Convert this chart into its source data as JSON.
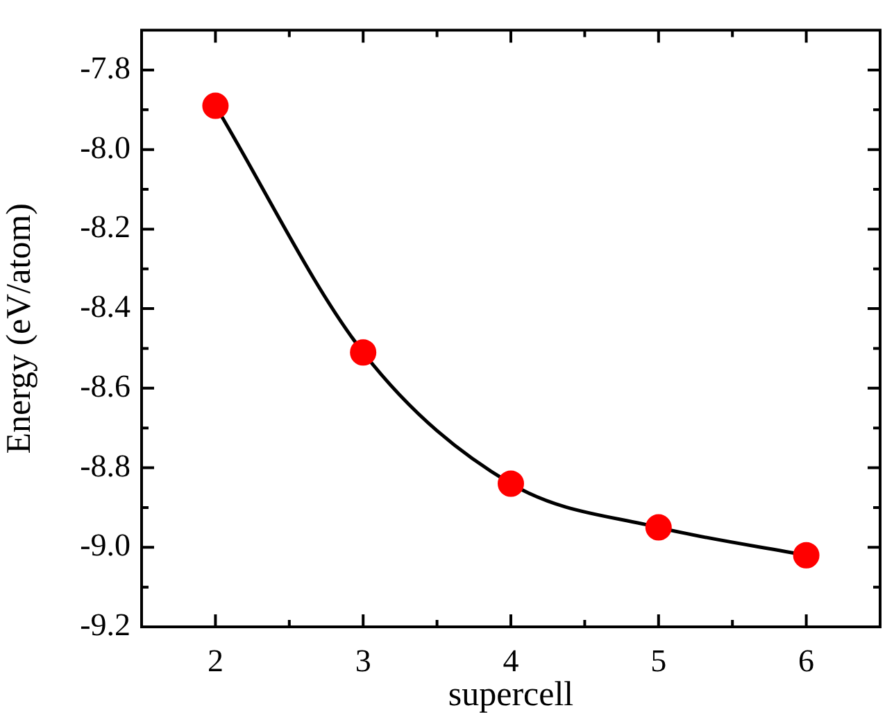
{
  "chart_data": {
    "type": "line",
    "xlabel": "supercell",
    "ylabel": "Energy (eV/atom)",
    "x": [
      2,
      3,
      4,
      5,
      6
    ],
    "series": [
      {
        "color": "#ff0000",
        "values": [
          -7.89,
          -8.51,
          -8.84,
          -8.95,
          -9.02
        ]
      }
    ],
    "xlim": [
      1.5,
      6.5
    ],
    "xticks": [
      2,
      {
        "value": 2.5,
        "label": null
      },
      3,
      {
        "value": 3.5,
        "label": null
      },
      4,
      {
        "value": 4.5,
        "label": null
      },
      5,
      {
        "value": 5.5,
        "label": null
      },
      6
    ],
    "ylim": [
      -9.2,
      -7.7
    ],
    "yticks": [
      {
        "value": -9.2,
        "label": "-9.2"
      },
      {
        "value": -9.1,
        "label": null
      },
      {
        "value": -9.0,
        "label": "-9.0"
      },
      {
        "value": -8.9,
        "label": null
      },
      {
        "value": -8.8,
        "label": "-8.8"
      },
      {
        "value": -8.7,
        "label": null
      },
      {
        "value": -8.6,
        "label": "-8.6"
      },
      {
        "value": -8.5,
        "label": null
      },
      {
        "value": -8.4,
        "label": "-8.4"
      },
      {
        "value": -8.3,
        "label": null
      },
      {
        "value": -8.2,
        "label": "-8.2"
      },
      {
        "value": -8.1,
        "label": null
      },
      {
        "value": -8.0,
        "label": "-8.0"
      },
      {
        "value": -7.9,
        "label": null
      },
      {
        "value": -7.8,
        "label": "-7.8"
      }
    ],
    "grid": false,
    "legend": false,
    "marker": "circle",
    "line_style": "solid"
  }
}
